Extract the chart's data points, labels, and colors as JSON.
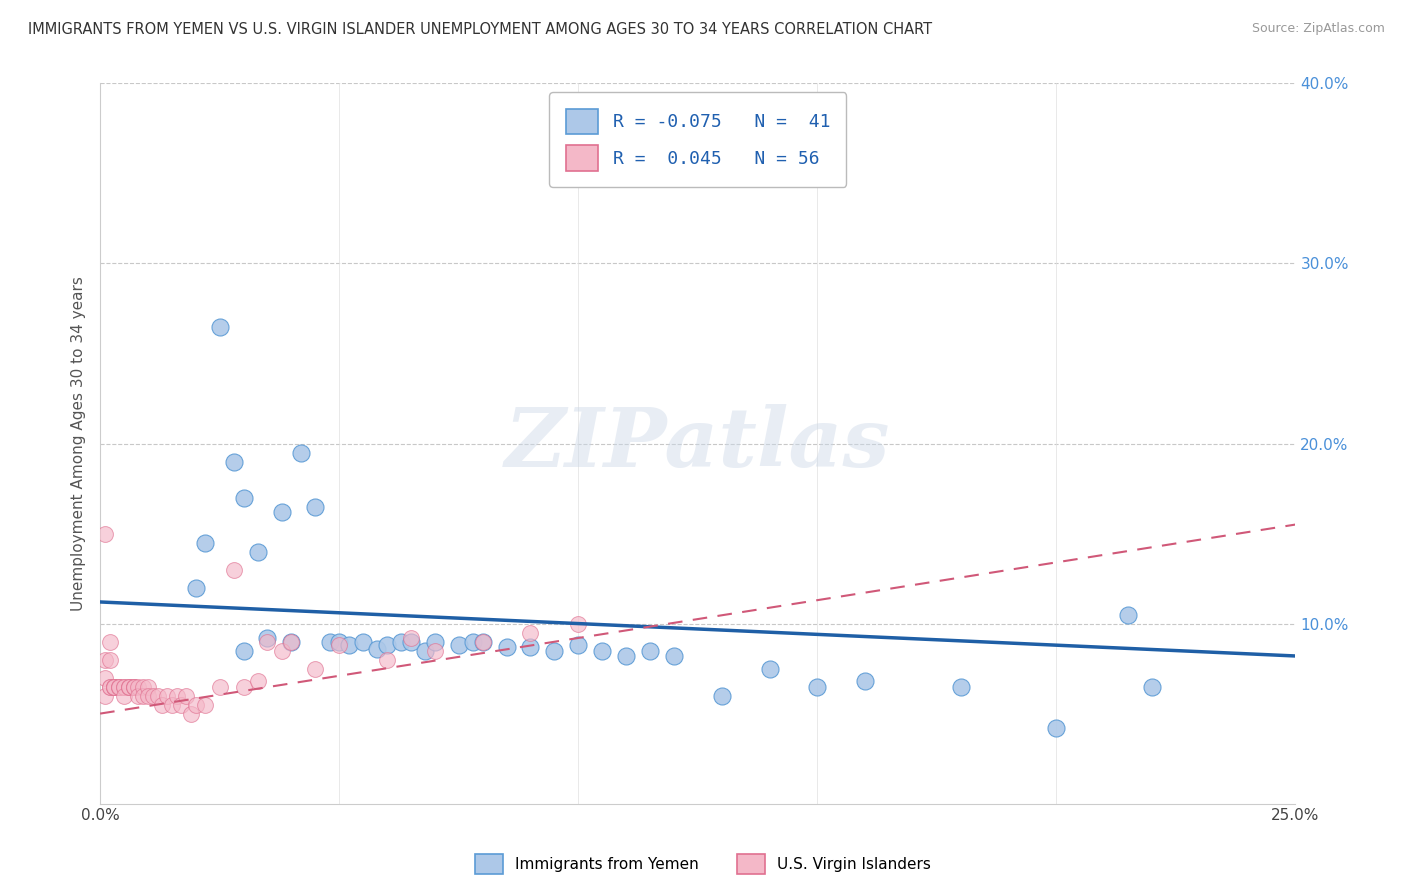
{
  "title": "IMMIGRANTS FROM YEMEN VS U.S. VIRGIN ISLANDER UNEMPLOYMENT AMONG AGES 30 TO 34 YEARS CORRELATION CHART",
  "source": "Source: ZipAtlas.com",
  "ylabel": "Unemployment Among Ages 30 to 34 years",
  "xlim": [
    0.0,
    0.25
  ],
  "ylim": [
    0.0,
    0.4
  ],
  "xticks": [
    0.0,
    0.05,
    0.1,
    0.15,
    0.2,
    0.25
  ],
  "xticklabels": [
    "0.0%",
    "",
    "",
    "",
    "",
    "25.0%"
  ],
  "yticks": [
    0.0,
    0.1,
    0.2,
    0.3,
    0.4
  ],
  "yticklabels_right": [
    "",
    "10.0%",
    "20.0%",
    "30.0%",
    "40.0%"
  ],
  "blue_fill": "#adc8e8",
  "blue_edge": "#5b9bd5",
  "pink_fill": "#f4b8c8",
  "pink_edge": "#e07090",
  "blue_trend_color": "#1f5fa6",
  "pink_trend_color": "#d05878",
  "watermark": "ZIPatlas",
  "series1_label": "Immigrants from Yemen",
  "series2_label": "U.S. Virgin Islanders",
  "grid_color": "#c8c8c8",
  "bg_color": "#ffffff",
  "blue_trend_start_y": 0.112,
  "blue_trend_end_y": 0.082,
  "pink_trend_start_y": 0.05,
  "pink_trend_end_y": 0.155,
  "blue_scatter_x": [
    0.02,
    0.022,
    0.025,
    0.028,
    0.03,
    0.03,
    0.033,
    0.035,
    0.038,
    0.04,
    0.042,
    0.045,
    0.048,
    0.05,
    0.052,
    0.055,
    0.058,
    0.06,
    0.063,
    0.065,
    0.068,
    0.07,
    0.075,
    0.078,
    0.08,
    0.085,
    0.09,
    0.095,
    0.1,
    0.105,
    0.11,
    0.115,
    0.12,
    0.13,
    0.14,
    0.15,
    0.16,
    0.18,
    0.2,
    0.215,
    0.22
  ],
  "blue_scatter_y": [
    0.12,
    0.145,
    0.265,
    0.19,
    0.17,
    0.085,
    0.14,
    0.092,
    0.162,
    0.09,
    0.195,
    0.165,
    0.09,
    0.09,
    0.088,
    0.09,
    0.086,
    0.088,
    0.09,
    0.09,
    0.085,
    0.09,
    0.088,
    0.09,
    0.09,
    0.087,
    0.087,
    0.085,
    0.088,
    0.085,
    0.082,
    0.085,
    0.082,
    0.06,
    0.075,
    0.065,
    0.068,
    0.065,
    0.042,
    0.105,
    0.065
  ],
  "pink_scatter_x": [
    0.001,
    0.001,
    0.001,
    0.001,
    0.002,
    0.002,
    0.002,
    0.002,
    0.003,
    0.003,
    0.003,
    0.003,
    0.004,
    0.004,
    0.004,
    0.005,
    0.005,
    0.005,
    0.006,
    0.006,
    0.006,
    0.007,
    0.007,
    0.007,
    0.008,
    0.008,
    0.009,
    0.009,
    0.01,
    0.01,
    0.011,
    0.012,
    0.013,
    0.014,
    0.015,
    0.016,
    0.017,
    0.018,
    0.019,
    0.02,
    0.022,
    0.025,
    0.028,
    0.03,
    0.033,
    0.035,
    0.038,
    0.04,
    0.045,
    0.05,
    0.06,
    0.065,
    0.07,
    0.08,
    0.09,
    0.1
  ],
  "pink_scatter_y": [
    0.15,
    0.06,
    0.08,
    0.07,
    0.09,
    0.065,
    0.065,
    0.08,
    0.065,
    0.065,
    0.065,
    0.065,
    0.065,
    0.065,
    0.065,
    0.065,
    0.065,
    0.06,
    0.065,
    0.065,
    0.065,
    0.065,
    0.065,
    0.065,
    0.065,
    0.06,
    0.065,
    0.06,
    0.065,
    0.06,
    0.06,
    0.06,
    0.055,
    0.06,
    0.055,
    0.06,
    0.055,
    0.06,
    0.05,
    0.055,
    0.055,
    0.065,
    0.13,
    0.065,
    0.068,
    0.09,
    0.085,
    0.09,
    0.075,
    0.088,
    0.08,
    0.092,
    0.085,
    0.09,
    0.095,
    0.1
  ]
}
